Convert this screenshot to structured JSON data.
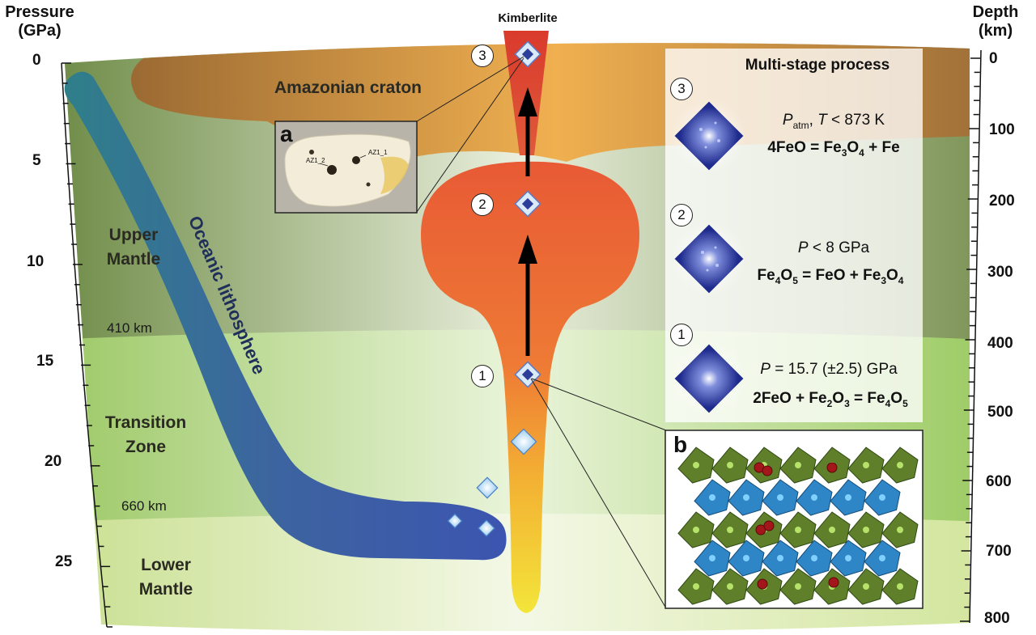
{
  "axes": {
    "left_title": [
      "Pressure",
      "(GPa)"
    ],
    "right_title": [
      "Depth",
      "(km)"
    ],
    "pressure_ticks": [
      "0",
      "5",
      "10",
      "15",
      "20",
      "25"
    ],
    "depth_ticks": [
      "0",
      "100",
      "200",
      "300",
      "400",
      "500",
      "600",
      "700",
      "800"
    ]
  },
  "labels": {
    "kimberlite": "Kimberlite",
    "craton": "Amazonian craton",
    "upper_mantle": [
      "Upper",
      "Mantle"
    ],
    "transition_zone": [
      "Transition",
      "Zone"
    ],
    "lower_mantle": [
      "Lower",
      "Mantle"
    ],
    "oceanic_lithosphere": "Oceanic lithosphere",
    "km410": "410 km",
    "km660": "660 km"
  },
  "stage_markers": [
    "3",
    "2",
    "1"
  ],
  "inset_a": {
    "letter": "a",
    "inclusions": [
      "AZ1_2",
      "AZ1_1"
    ]
  },
  "inset_b": {
    "letter": "b"
  },
  "process_panel": {
    "title": "Multi-stage process",
    "stages": [
      {
        "number": "3",
        "condition": [
          "P",
          "atm",
          ", ",
          "T",
          " < 873 K"
        ],
        "equation": "4FeO = Fe3O4 + Fe"
      },
      {
        "number": "2",
        "condition": [
          "P",
          " < 8 GPa"
        ],
        "equation": "Fe4O5 = FeO + Fe3O4"
      },
      {
        "number": "1",
        "condition": [
          "P",
          " = 15.7 (±2.5) GPa"
        ],
        "equation": "2FeO + Fe2O3 = Fe4O5"
      }
    ]
  },
  "colors": {
    "craton": "#a8743c",
    "upper_mantle": "#6f8a4a",
    "transition_zone": "#a9cf74",
    "lower_mantle": "#cfe39a",
    "plume_top": "#e8633a",
    "plume_bottom": "#f2e23a",
    "kimberlite": "#d43a2a",
    "slab": "#3d5aa8",
    "diamond": "#2c3d9a"
  }
}
